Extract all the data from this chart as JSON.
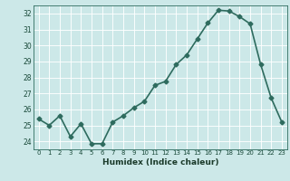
{
  "x": [
    0,
    1,
    2,
    3,
    4,
    5,
    6,
    7,
    8,
    9,
    10,
    11,
    12,
    13,
    14,
    15,
    16,
    17,
    18,
    19,
    20,
    21,
    22,
    23
  ],
  "y": [
    25.4,
    25.0,
    25.6,
    24.3,
    25.1,
    23.85,
    23.85,
    25.2,
    25.6,
    26.1,
    26.5,
    27.5,
    27.75,
    28.8,
    29.4,
    30.4,
    31.4,
    32.2,
    32.15,
    31.8,
    31.35,
    28.8,
    26.7,
    25.2
  ],
  "xlabel": "Humidex (Indice chaleur)",
  "xlim": [
    -0.5,
    23.5
  ],
  "ylim": [
    23.5,
    32.5
  ],
  "yticks": [
    24,
    25,
    26,
    27,
    28,
    29,
    30,
    31,
    32
  ],
  "xtick_labels": [
    "0",
    "1",
    "2",
    "3",
    "4",
    "5",
    "6",
    "7",
    "8",
    "9",
    "10",
    "11",
    "12",
    "13",
    "14",
    "15",
    "16",
    "17",
    "18",
    "19",
    "20",
    "21",
    "22",
    "23"
  ],
  "line_color": "#2e6b5e",
  "marker": "D",
  "marker_size": 2.5,
  "bg_color": "#cce8e8",
  "grid_color": "#b8d8d8",
  "line_width": 1.2
}
